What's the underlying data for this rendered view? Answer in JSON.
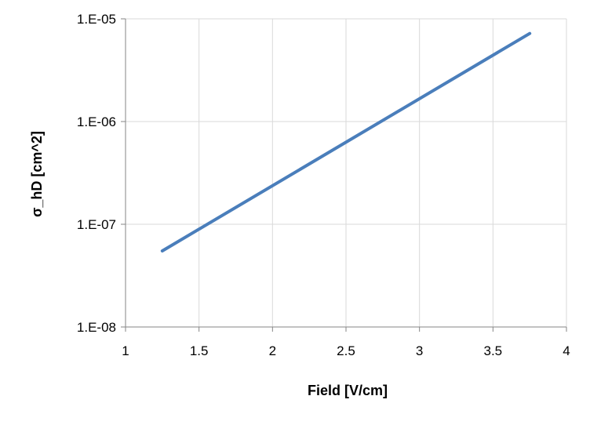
{
  "chart_data": {
    "type": "line",
    "title": "",
    "xlabel": "Field [V/cm]",
    "ylabel": "σ_hD [cm^2]",
    "xlim": [
      1,
      4
    ],
    "ylim": [
      1e-08,
      1e-05
    ],
    "yscale": "log",
    "grid": true,
    "legend": "none",
    "x_ticks": [
      1,
      1.5,
      2,
      2.5,
      3,
      3.5,
      4
    ],
    "x_tick_labels": [
      "1",
      "1.5",
      "2",
      "2.5",
      "3",
      "3.5",
      "4"
    ],
    "y_ticks": [
      1e-08,
      1e-07,
      1e-06,
      1e-05
    ],
    "y_tick_labels": [
      "1.E-08",
      "1.E-07",
      "1.E-06",
      "1.E-05"
    ],
    "series": [
      {
        "color": "#4a7ebb",
        "x": [
          1.25,
          3.75
        ],
        "y": [
          5.5e-08,
          7.2e-06
        ]
      }
    ]
  }
}
